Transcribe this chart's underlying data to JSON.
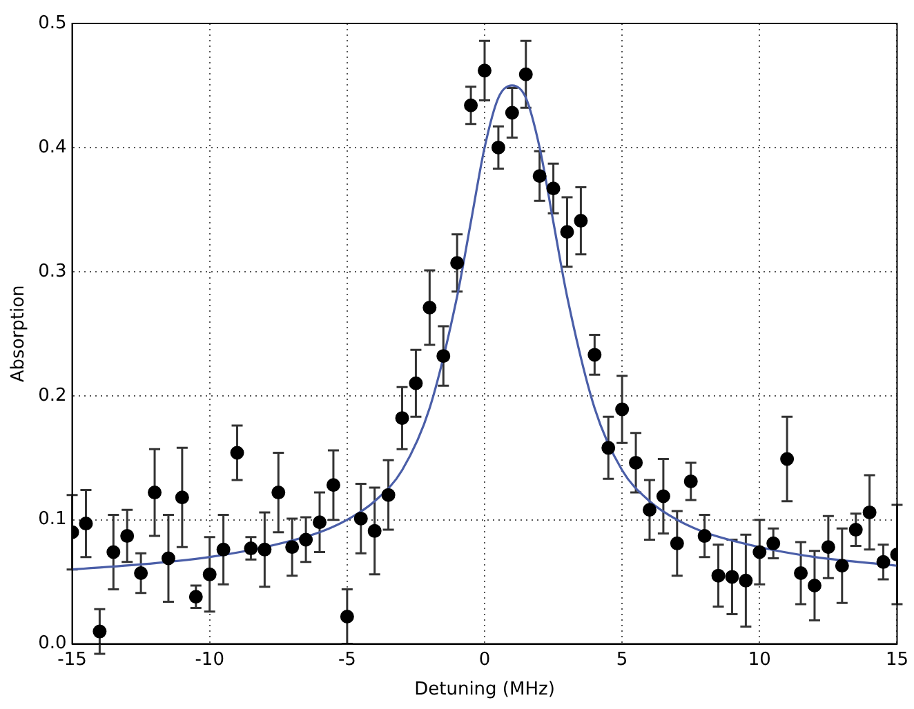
{
  "chart_data": {
    "type": "scatter",
    "xlabel": "Detuning (MHz)",
    "ylabel": "Absorption",
    "xlim": [
      -15,
      15
    ],
    "xticks": [
      -15,
      -10,
      -5,
      0,
      5,
      10,
      15
    ],
    "ylim": [
      0,
      0.5
    ],
    "yticks": [
      {
        "value": 0,
        "label": "0.0"
      },
      {
        "value": 0.1,
        "label": "0.1"
      },
      {
        "value": 0.2,
        "label": "0.2"
      },
      {
        "value": 0.3,
        "label": "0.3"
      },
      {
        "value": 0.4,
        "label": "0.4"
      },
      {
        "value": 0.5,
        "label": "0.5"
      }
    ],
    "grid": true,
    "legend": false,
    "marker": "circle",
    "series": [
      {
        "color": "#000000",
        "x": [
          -15,
          -14.5,
          -14,
          -13.5,
          -13,
          -12.5,
          -12,
          -11.5,
          -11,
          -10.5,
          -10,
          -9.5,
          -9,
          -8.5,
          -8,
          -7.5,
          -7,
          -6.5,
          -6,
          -5.5,
          -5,
          -4.5,
          -4,
          -3.5,
          -3,
          -2.5,
          -2,
          -1.5,
          -1,
          -0.5,
          0,
          0.5,
          1,
          1.5,
          2,
          2.5,
          3,
          3.5,
          4,
          4.5,
          5,
          5.5,
          6,
          6.5,
          7,
          7.5,
          8,
          8.5,
          9,
          9.5,
          10,
          10.5,
          11,
          11.5,
          12,
          12.5,
          13,
          13.5,
          14,
          14.5,
          15
        ],
        "values": [
          0.09,
          0.097,
          0.01,
          0.074,
          0.087,
          0.057,
          0.122,
          0.069,
          0.118,
          0.038,
          0.056,
          0.076,
          0.154,
          0.077,
          0.076,
          0.122,
          0.078,
          0.084,
          0.098,
          0.128,
          0.022,
          0.101,
          0.091,
          0.12,
          0.182,
          0.21,
          0.271,
          0.232,
          0.307,
          0.434,
          0.462,
          0.4,
          0.428,
          0.459,
          0.377,
          0.367,
          0.332,
          0.341,
          0.233,
          0.158,
          0.189,
          0.146,
          0.108,
          0.119,
          0.081,
          0.131,
          0.087,
          0.055,
          0.054,
          0.051,
          0.074,
          0.081,
          0.149,
          0.057,
          0.047,
          0.078,
          0.063,
          0.092,
          0.106,
          0.066,
          0.072
        ],
        "errors": [
          0.03,
          0.027,
          0.018,
          0.03,
          0.021,
          0.016,
          0.035,
          0.035,
          0.04,
          0.009,
          0.03,
          0.028,
          0.022,
          0.009,
          0.03,
          0.032,
          0.023,
          0.018,
          0.024,
          0.028,
          0.022,
          0.028,
          0.035,
          0.028,
          0.025,
          0.027,
          0.03,
          0.024,
          0.023,
          0.015,
          0.024,
          0.017,
          0.02,
          0.027,
          0.02,
          0.02,
          0.028,
          0.027,
          0.016,
          0.025,
          0.027,
          0.024,
          0.024,
          0.03,
          0.026,
          0.015,
          0.017,
          0.025,
          0.03,
          0.037,
          0.026,
          0.012,
          0.034,
          0.025,
          0.028,
          0.025,
          0.03,
          0.013,
          0.03,
          0.014,
          0.04
        ]
      },
      {
        "type": "line",
        "color": "#4a5ea8",
        "marker": "none",
        "line_style": "solid",
        "x": [
          -15,
          -12,
          -10,
          -8,
          -6,
          -5,
          -4,
          -3,
          -2,
          -1,
          -0.5,
          0,
          0.5,
          1,
          1.5,
          2,
          2.5,
          3,
          4,
          5,
          6,
          7,
          8,
          10,
          12,
          15
        ],
        "values": [
          0.06,
          0.065,
          0.07,
          0.078,
          0.09,
          0.1,
          0.115,
          0.14,
          0.19,
          0.28,
          0.34,
          0.4,
          0.44,
          0.45,
          0.44,
          0.4,
          0.34,
          0.28,
          0.19,
          0.14,
          0.115,
          0.1,
          0.09,
          0.078,
          0.07,
          0.063
        ]
      }
    ]
  }
}
